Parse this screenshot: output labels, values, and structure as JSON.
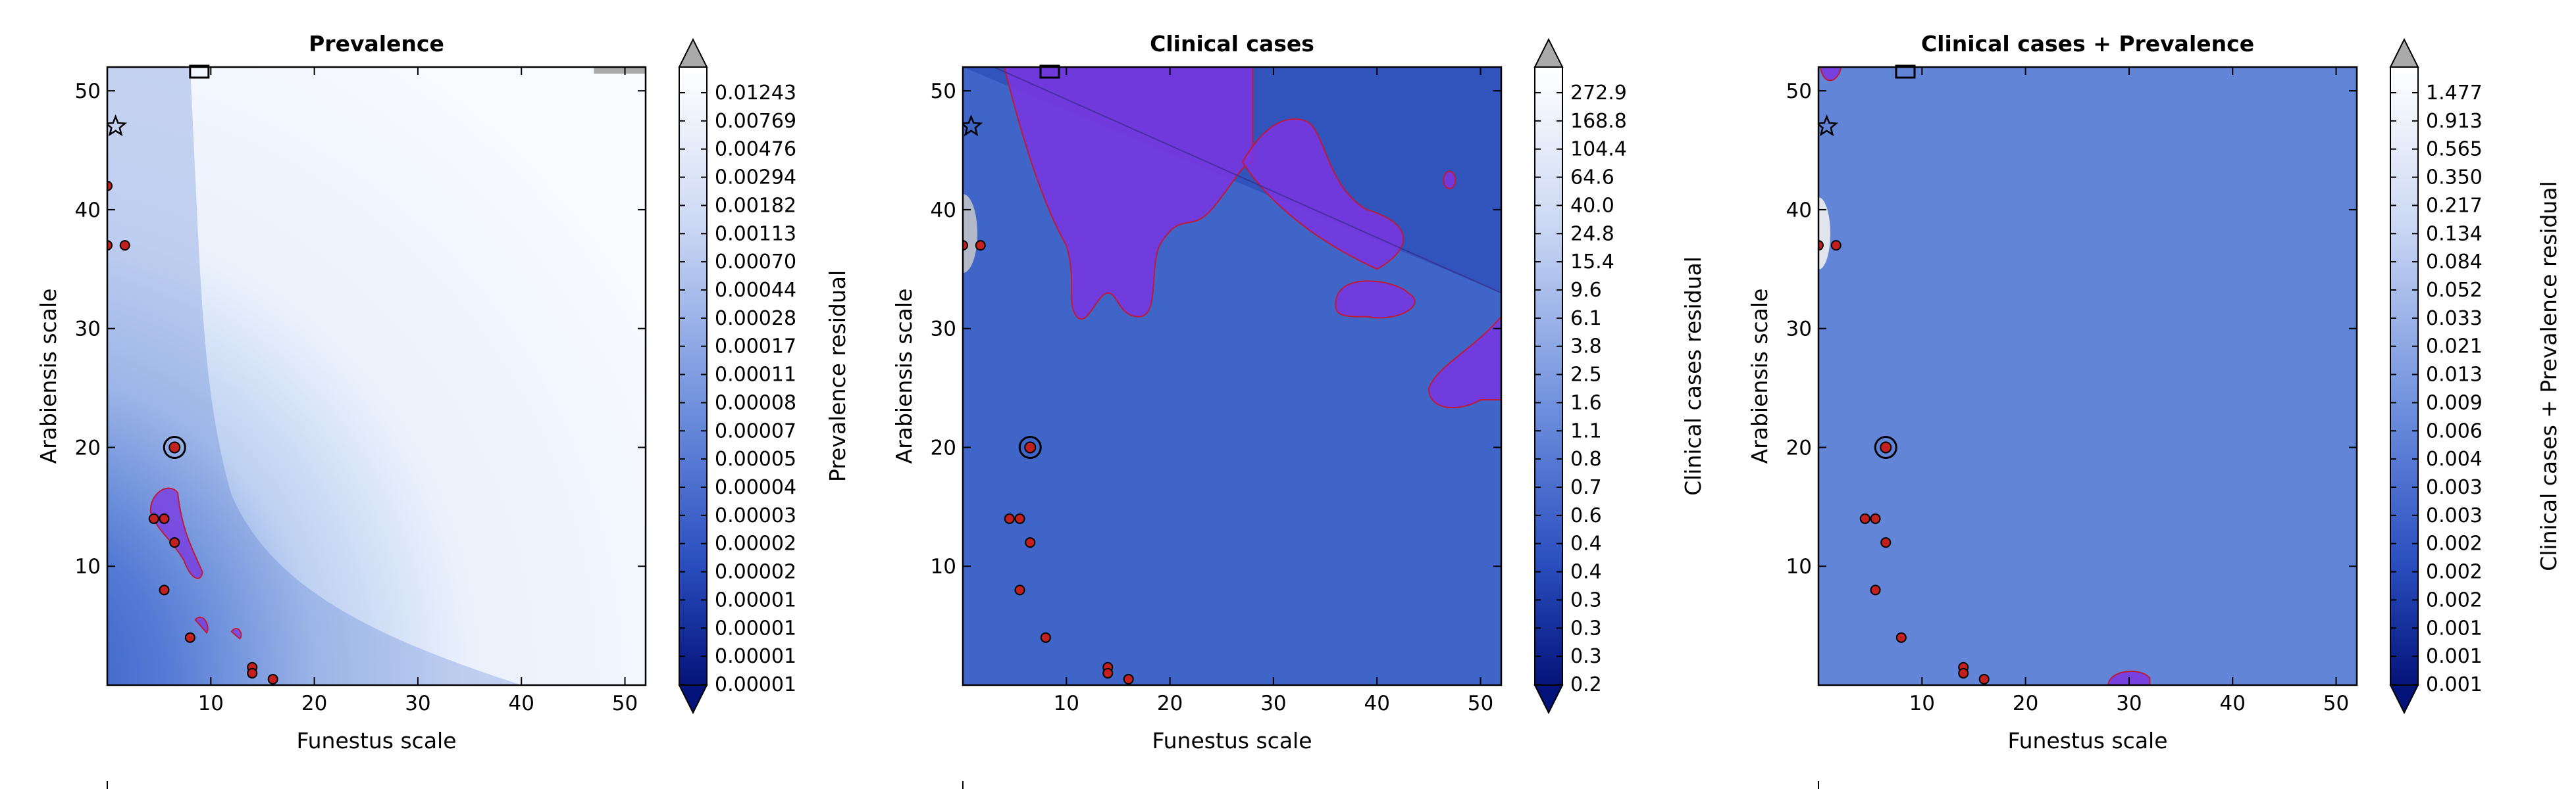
{
  "chart_data": [
    {
      "type": "heatmap",
      "title": "Prevalence",
      "xlabel": "Funestus scale",
      "ylabel": "Arabiensis scale",
      "xlim": [
        0,
        52
      ],
      "ylim": [
        0,
        52
      ],
      "xticks": [
        10,
        20,
        30,
        40,
        50
      ],
      "yticks": [
        10,
        20,
        30,
        40,
        50
      ],
      "colorbar": {
        "label": "Prevalence residual",
        "ticks": [
          "0.01243",
          "0.00769",
          "0.00476",
          "0.00294",
          "0.00182",
          "0.00113",
          "0.00070",
          "0.00044",
          "0.00028",
          "0.00017",
          "0.00011",
          "0.00008",
          "0.00007",
          "0.00005",
          "0.00004",
          "0.00003",
          "0.00002",
          "0.00002",
          "0.00001",
          "0.00001",
          "0.00001",
          "0.00001"
        ]
      },
      "points": [
        [
          0,
          42
        ],
        [
          0,
          37
        ],
        [
          1.7,
          37
        ],
        [
          5.5,
          14
        ],
        [
          4.5,
          14
        ],
        [
          5.5,
          8
        ],
        [
          6.5,
          12
        ],
        [
          8,
          4
        ],
        [
          14,
          1.5
        ],
        [
          14,
          1
        ],
        [
          16,
          0.5
        ]
      ],
      "circle_marker": [
        6.5,
        20
      ],
      "star_marker": [
        0.8,
        47
      ]
    },
    {
      "type": "heatmap",
      "title": "Clinical cases",
      "xlabel": "Funestus scale",
      "ylabel": "Arabiensis scale",
      "xlim": [
        0,
        52
      ],
      "ylim": [
        0,
        52
      ],
      "xticks": [
        10,
        20,
        30,
        40,
        50
      ],
      "yticks": [
        10,
        20,
        30,
        40,
        50
      ],
      "colorbar": {
        "label": "Clinical cases residual",
        "ticks": [
          "272.9",
          "168.8",
          "104.4",
          "64.6",
          "40.0",
          "24.8",
          "15.4",
          "9.6",
          "6.1",
          "3.8",
          "2.5",
          "1.6",
          "1.1",
          "0.8",
          "0.7",
          "0.6",
          "0.4",
          "0.4",
          "0.3",
          "0.3",
          "0.3",
          "0.2"
        ]
      },
      "points": [
        [
          0,
          37
        ],
        [
          1.7,
          37
        ],
        [
          5.5,
          14
        ],
        [
          4.5,
          14
        ],
        [
          5.5,
          8
        ],
        [
          6.5,
          12
        ],
        [
          8,
          4
        ],
        [
          14,
          1.5
        ],
        [
          14,
          1
        ],
        [
          16,
          0.5
        ]
      ],
      "circle_marker": [
        6.5,
        20
      ],
      "star_marker": [
        0.8,
        47
      ]
    },
    {
      "type": "heatmap",
      "title": "Clinical cases + Prevalence",
      "xlabel": "Funestus scale",
      "ylabel": "Arabiensis scale",
      "xlim": [
        0,
        52
      ],
      "ylim": [
        0,
        52
      ],
      "xticks": [
        10,
        20,
        30,
        40,
        50
      ],
      "yticks": [
        10,
        20,
        30,
        40,
        50
      ],
      "colorbar": {
        "label": "Clinical cases + Prevalence residual",
        "ticks": [
          "1.477",
          "0.913",
          "0.565",
          "0.350",
          "0.217",
          "0.134",
          "0.084",
          "0.052",
          "0.033",
          "0.021",
          "0.013",
          "0.009",
          "0.006",
          "0.004",
          "0.003",
          "0.003",
          "0.002",
          "0.002",
          "0.002",
          "0.001",
          "0.001",
          "0.001"
        ]
      },
      "points": [
        [
          0,
          37
        ],
        [
          1.7,
          37
        ],
        [
          5.5,
          14
        ],
        [
          4.5,
          14
        ],
        [
          5.5,
          8
        ],
        [
          6.5,
          12
        ],
        [
          8,
          4
        ],
        [
          14,
          1.5
        ],
        [
          14,
          1
        ],
        [
          16,
          0.5
        ]
      ],
      "circle_marker": [
        6.5,
        20
      ],
      "star_marker": [
        0.8,
        47
      ]
    }
  ],
  "colors": {
    "dark": "#08308a",
    "mid": "#3d5fc8",
    "light": "#e4edfb",
    "highlight": "#7a35e0",
    "highlight_edge": "#c01a3a",
    "point_fill": "#c42020",
    "extend_max": "#aaaaaa"
  }
}
